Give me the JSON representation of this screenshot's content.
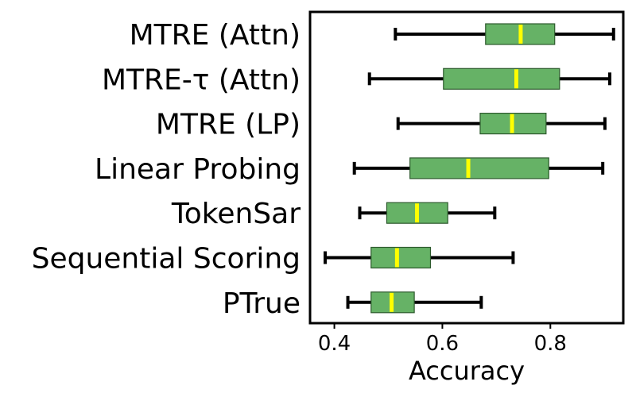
{
  "chart_data": {
    "type": "boxplot",
    "orientation": "horizontal",
    "xlabel": "Accuracy",
    "xlim": [
      0.355,
      0.935
    ],
    "xticks": [
      0.4,
      0.6,
      0.8
    ],
    "xtick_labels": [
      "0.4",
      "0.6",
      "0.8"
    ],
    "grid": false,
    "box_color": "#66b266",
    "box_edge_color": "#2d5a2d",
    "median_color": "#ffff00",
    "whisker_color": "#000000",
    "categories": [
      "MTRE (Attn)",
      "MTRE-τ (Attn)",
      "MTRE (LP)",
      "Linear Probing",
      "TokenSar",
      "Sequential Scoring",
      "PTrue"
    ],
    "boxes": [
      {
        "label": "MTRE (Attn)",
        "min": 0.513,
        "q1": 0.68,
        "median": 0.745,
        "q3": 0.808,
        "max": 0.917
      },
      {
        "label": "MTRE-τ (Attn)",
        "min": 0.465,
        "q1": 0.602,
        "median": 0.737,
        "q3": 0.817,
        "max": 0.91
      },
      {
        "label": "MTRE (LP)",
        "min": 0.518,
        "q1": 0.67,
        "median": 0.729,
        "q3": 0.792,
        "max": 0.901
      },
      {
        "label": "Linear Probing",
        "min": 0.437,
        "q1": 0.54,
        "median": 0.648,
        "q3": 0.797,
        "max": 0.897
      },
      {
        "label": "TokenSar",
        "min": 0.447,
        "q1": 0.497,
        "median": 0.553,
        "q3": 0.61,
        "max": 0.697
      },
      {
        "label": "Sequential Scoring",
        "min": 0.383,
        "q1": 0.468,
        "median": 0.516,
        "q3": 0.578,
        "max": 0.731
      },
      {
        "label": "PTrue",
        "min": 0.425,
        "q1": 0.468,
        "median": 0.506,
        "q3": 0.548,
        "max": 0.672
      }
    ]
  }
}
